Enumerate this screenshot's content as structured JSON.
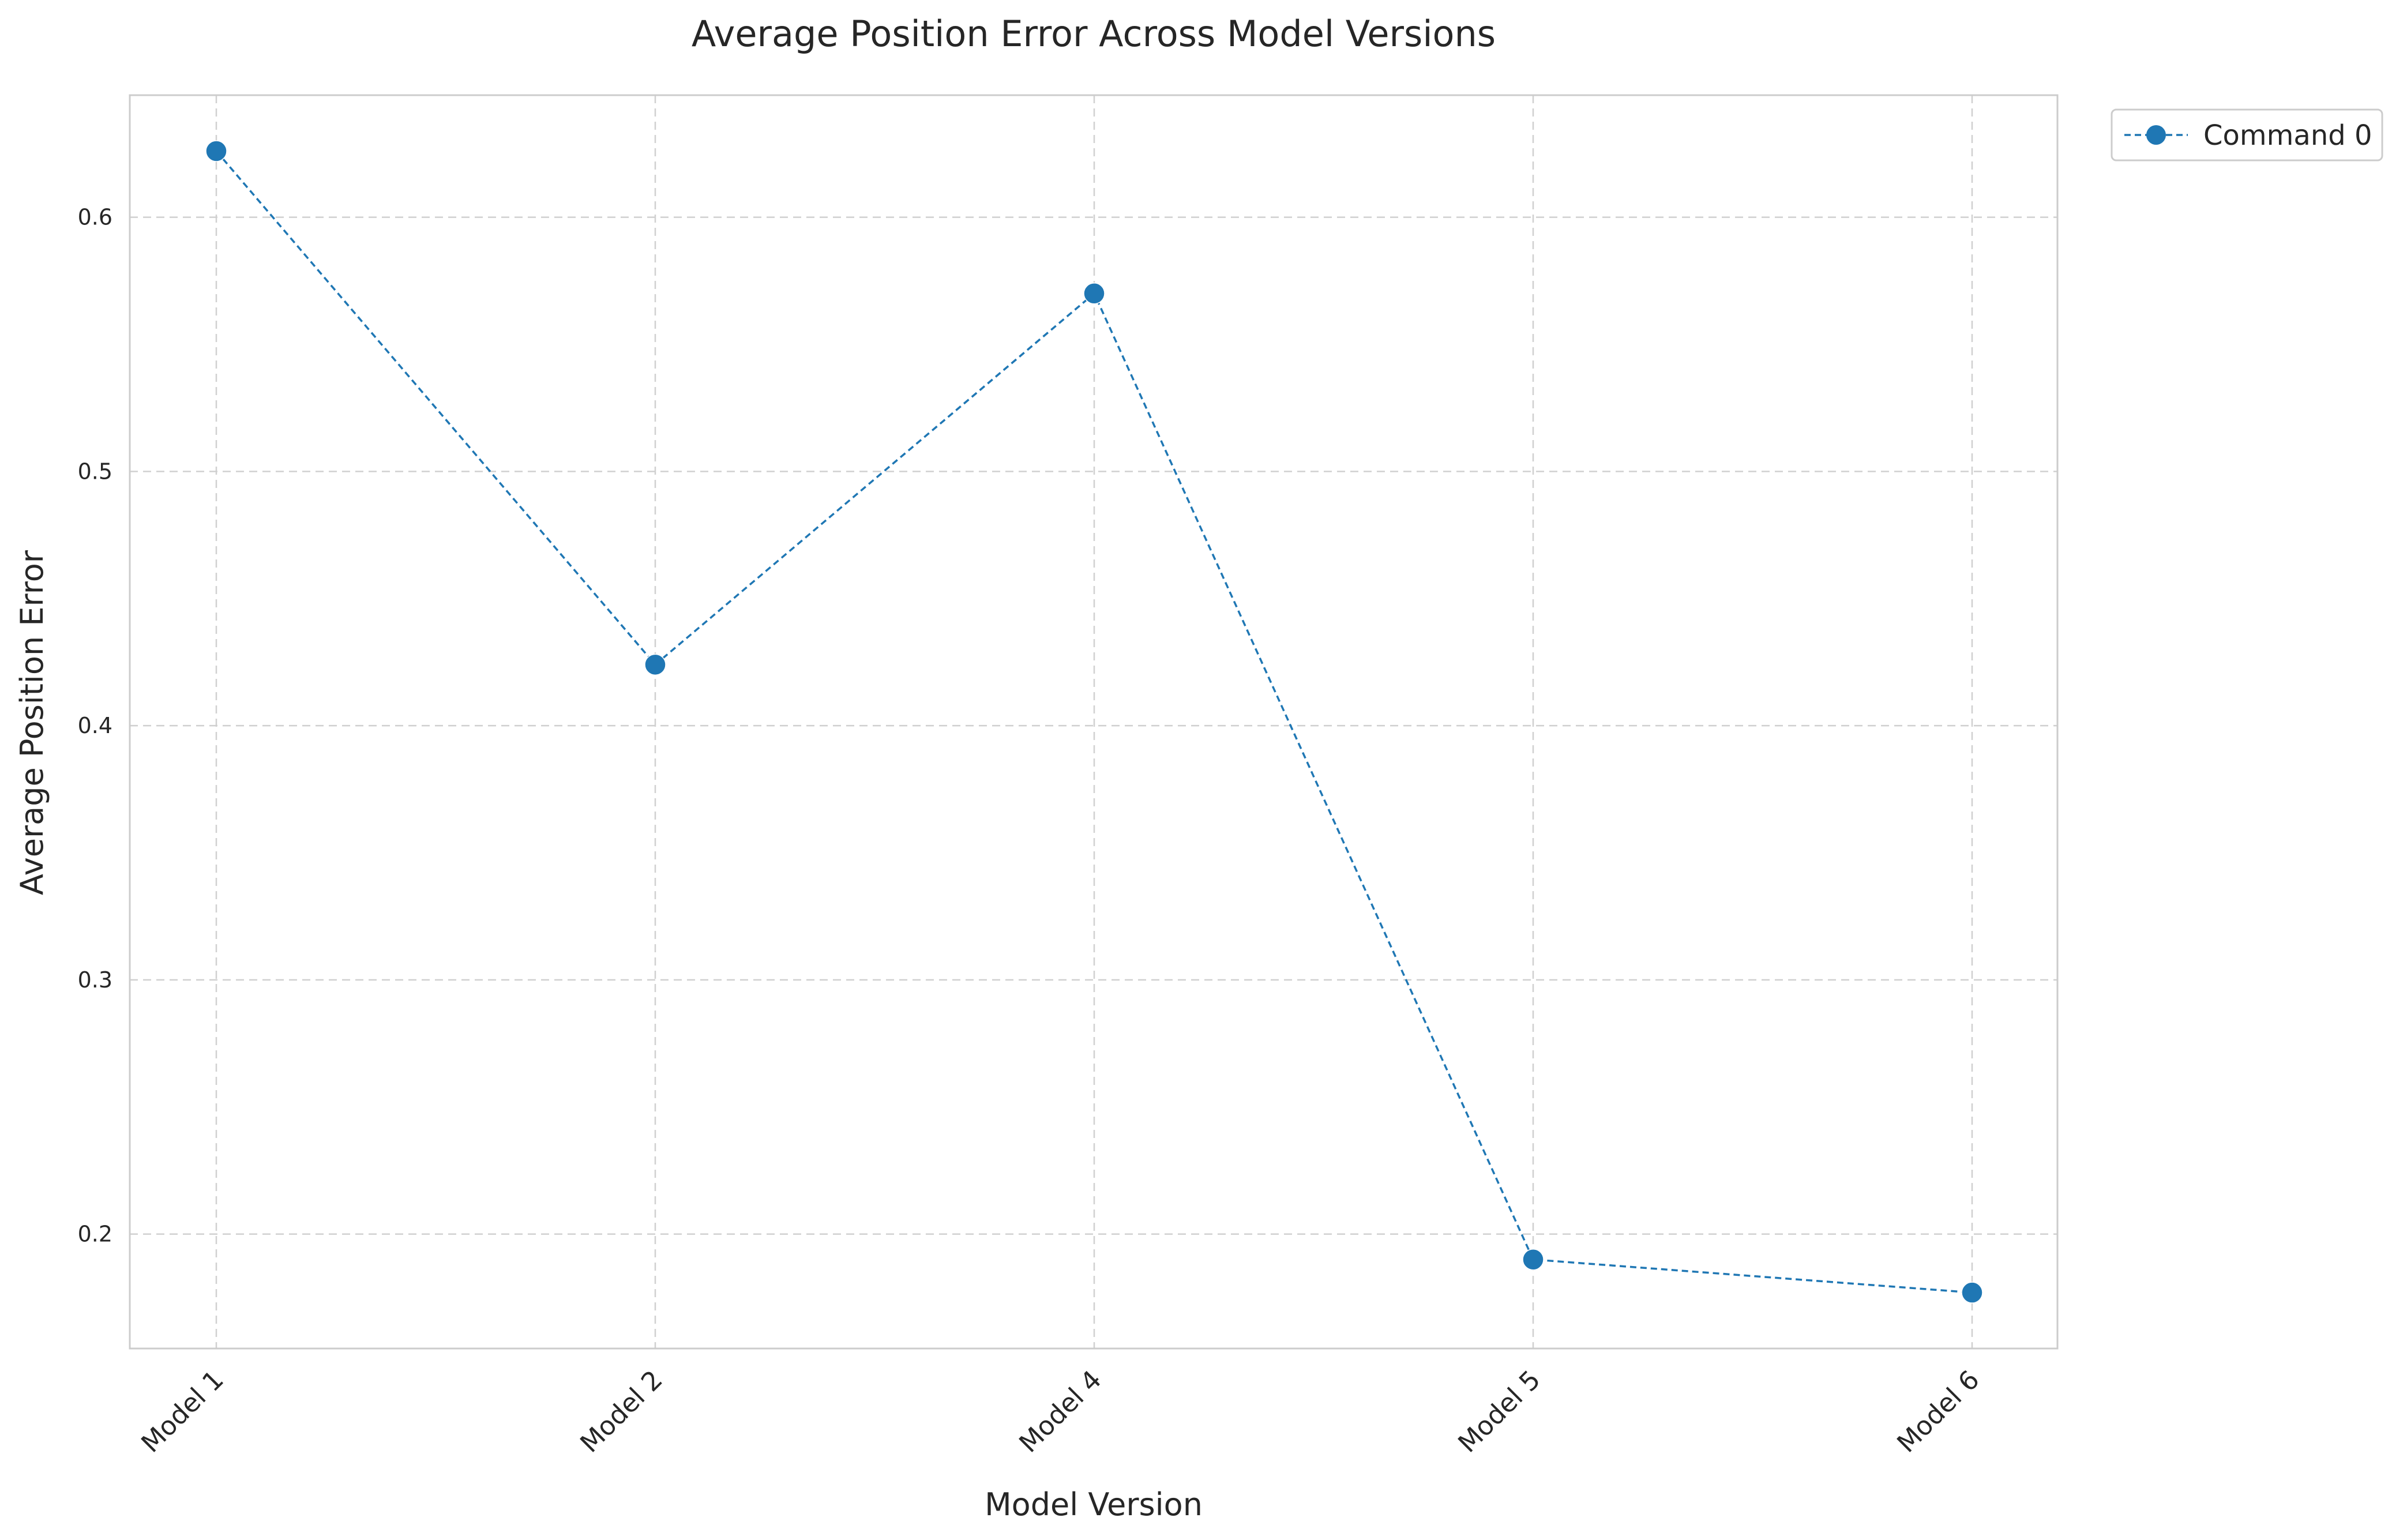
{
  "chart_data": {
    "type": "line",
    "title": "Average Position Error Across Model Versions",
    "xlabel": "Model Version",
    "ylabel": "Average Position Error",
    "categories": [
      "Model 1",
      "Model 2",
      "Model 4",
      "Model 5",
      "Model 6"
    ],
    "series": [
      {
        "name": "Command 0",
        "values": [
          0.626,
          0.424,
          0.57,
          0.19,
          0.177
        ],
        "color": "#1f77b4",
        "line_style": "dashed",
        "marker": "circle"
      }
    ],
    "ylim": [
      0.155,
      0.648
    ],
    "yticks": [
      0.2,
      0.3,
      0.4,
      0.5,
      0.6
    ],
    "ytick_labels": [
      "0.2",
      "0.3",
      "0.4",
      "0.5",
      "0.6"
    ],
    "grid": true,
    "legend_position": "outside-top-right"
  }
}
